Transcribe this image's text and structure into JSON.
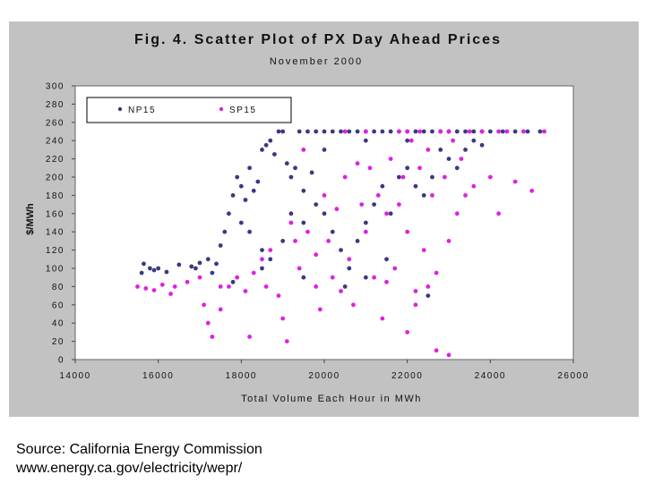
{
  "chart_data": {
    "type": "scatter",
    "title": "Fig. 4.  Scatter Plot of PX Day Ahead Prices",
    "subtitle": "November 2000",
    "xlabel": "Total Volume Each Hour in MWh",
    "ylabel": "$/MWh",
    "xlim": [
      14000,
      26000
    ],
    "ylim": [
      0,
      300
    ],
    "x_ticks": [
      "14000",
      "16000",
      "18000",
      "20000",
      "22000",
      "24000",
      "26000"
    ],
    "y_ticks": [
      "0",
      "20",
      "40",
      "60",
      "80",
      "100",
      "120",
      "140",
      "160",
      "180",
      "200",
      "220",
      "240",
      "260",
      "280",
      "300"
    ],
    "legend_position": "top-left inside plot",
    "grid": false,
    "series": [
      {
        "name": "NP15",
        "color": "#3a3a80",
        "points": [
          [
            15600,
            95
          ],
          [
            15650,
            105
          ],
          [
            15800,
            100
          ],
          [
            15900,
            98
          ],
          [
            16000,
            100
          ],
          [
            16200,
            96
          ],
          [
            16500,
            104
          ],
          [
            16800,
            102
          ],
          [
            17000,
            106
          ],
          [
            17200,
            110
          ],
          [
            17400,
            105
          ],
          [
            17500,
            125
          ],
          [
            17600,
            140
          ],
          [
            17700,
            160
          ],
          [
            17800,
            180
          ],
          [
            17900,
            200
          ],
          [
            18000,
            190
          ],
          [
            18100,
            175
          ],
          [
            18200,
            210
          ],
          [
            18300,
            185
          ],
          [
            18400,
            195
          ],
          [
            18500,
            230
          ],
          [
            18600,
            235
          ],
          [
            18700,
            240
          ],
          [
            18800,
            225
          ],
          [
            18900,
            250
          ],
          [
            19000,
            250
          ],
          [
            19100,
            215
          ],
          [
            19200,
            200
          ],
          [
            19300,
            210
          ],
          [
            19400,
            250
          ],
          [
            19500,
            185
          ],
          [
            19600,
            250
          ],
          [
            19700,
            205
          ],
          [
            19800,
            250
          ],
          [
            20000,
            250
          ],
          [
            20200,
            250
          ],
          [
            20400,
            250
          ],
          [
            20600,
            250
          ],
          [
            20800,
            250
          ],
          [
            21000,
            250
          ],
          [
            21200,
            250
          ],
          [
            21400,
            250
          ],
          [
            21600,
            250
          ],
          [
            21800,
            250
          ],
          [
            22000,
            250
          ],
          [
            22200,
            250
          ],
          [
            22400,
            250
          ],
          [
            22600,
            250
          ],
          [
            22800,
            250
          ],
          [
            23000,
            250
          ],
          [
            23200,
            250
          ],
          [
            23400,
            250
          ],
          [
            23600,
            250
          ],
          [
            23800,
            250
          ],
          [
            24000,
            250
          ],
          [
            24300,
            250
          ],
          [
            24600,
            250
          ],
          [
            24900,
            250
          ],
          [
            25200,
            250
          ],
          [
            18000,
            150
          ],
          [
            18200,
            140
          ],
          [
            18500,
            120
          ],
          [
            18700,
            110
          ],
          [
            19000,
            130
          ],
          [
            19200,
            160
          ],
          [
            19500,
            150
          ],
          [
            19800,
            170
          ],
          [
            20000,
            160
          ],
          [
            20200,
            140
          ],
          [
            20400,
            120
          ],
          [
            20600,
            100
          ],
          [
            20800,
            130
          ],
          [
            21000,
            150
          ],
          [
            21200,
            170
          ],
          [
            21400,
            190
          ],
          [
            21600,
            160
          ],
          [
            21800,
            200
          ],
          [
            22000,
            210
          ],
          [
            22200,
            190
          ],
          [
            22400,
            180
          ],
          [
            22600,
            200
          ],
          [
            22800,
            230
          ],
          [
            23000,
            220
          ],
          [
            23200,
            210
          ],
          [
            23400,
            230
          ],
          [
            23600,
            240
          ],
          [
            23800,
            235
          ],
          [
            21000,
            90
          ],
          [
            20500,
            80
          ],
          [
            19500,
            90
          ],
          [
            18500,
            100
          ],
          [
            21500,
            110
          ],
          [
            22500,
            70
          ],
          [
            17800,
            85
          ],
          [
            17300,
            95
          ],
          [
            16900,
            100
          ],
          [
            20000,
            230
          ],
          [
            21000,
            240
          ],
          [
            22000,
            240
          ]
        ]
      },
      {
        "name": "SP15",
        "color": "#e020e0",
        "points": [
          [
            15500,
            80
          ],
          [
            15700,
            78
          ],
          [
            15900,
            76
          ],
          [
            16100,
            82
          ],
          [
            16400,
            80
          ],
          [
            16700,
            85
          ],
          [
            17000,
            90
          ],
          [
            17100,
            60
          ],
          [
            17200,
            40
          ],
          [
            17300,
            25
          ],
          [
            17500,
            55
          ],
          [
            17700,
            80
          ],
          [
            17900,
            90
          ],
          [
            18100,
            75
          ],
          [
            18200,
            25
          ],
          [
            18300,
            95
          ],
          [
            18500,
            110
          ],
          [
            18700,
            120
          ],
          [
            18900,
            70
          ],
          [
            19000,
            45
          ],
          [
            19100,
            20
          ],
          [
            19300,
            130
          ],
          [
            19400,
            100
          ],
          [
            19600,
            140
          ],
          [
            19800,
            115
          ],
          [
            19900,
            55
          ],
          [
            20000,
            180
          ],
          [
            20100,
            130
          ],
          [
            20200,
            90
          ],
          [
            20300,
            165
          ],
          [
            20500,
            200
          ],
          [
            20600,
            110
          ],
          [
            20700,
            60
          ],
          [
            20900,
            170
          ],
          [
            21000,
            140
          ],
          [
            21100,
            210
          ],
          [
            21200,
            90
          ],
          [
            21300,
            180
          ],
          [
            21400,
            45
          ],
          [
            21500,
            160
          ],
          [
            21600,
            220
          ],
          [
            21700,
            100
          ],
          [
            21800,
            170
          ],
          [
            21900,
            200
          ],
          [
            22000,
            140
          ],
          [
            22100,
            240
          ],
          [
            22200,
            60
          ],
          [
            22300,
            210
          ],
          [
            22400,
            120
          ],
          [
            22500,
            230
          ],
          [
            22600,
            180
          ],
          [
            22700,
            95
          ],
          [
            22800,
            250
          ],
          [
            22900,
            200
          ],
          [
            23000,
            130
          ],
          [
            23100,
            240
          ],
          [
            23200,
            160
          ],
          [
            23300,
            220
          ],
          [
            23400,
            180
          ],
          [
            23600,
            190
          ],
          [
            23800,
            250
          ],
          [
            24000,
            200
          ],
          [
            24200,
            160
          ],
          [
            24400,
            250
          ],
          [
            24600,
            195
          ],
          [
            24800,
            250
          ],
          [
            25000,
            185
          ],
          [
            25300,
            250
          ],
          [
            22000,
            30
          ],
          [
            22700,
            10
          ],
          [
            23000,
            5
          ],
          [
            21500,
            85
          ],
          [
            22200,
            75
          ],
          [
            22500,
            80
          ],
          [
            19800,
            80
          ],
          [
            20400,
            75
          ],
          [
            18600,
            80
          ],
          [
            17500,
            80
          ],
          [
            16300,
            72
          ],
          [
            21000,
            250
          ],
          [
            22000,
            250
          ],
          [
            23000,
            250
          ],
          [
            20500,
            250
          ],
          [
            19500,
            230
          ],
          [
            24200,
            250
          ],
          [
            23500,
            250
          ],
          [
            21800,
            250
          ],
          [
            22300,
            250
          ],
          [
            20800,
            215
          ],
          [
            19200,
            150
          ]
        ]
      }
    ]
  },
  "source": {
    "line1": "Source:  California Energy Commission",
    "line2": "www.energy.ca.gov/electricity/wepr/"
  }
}
